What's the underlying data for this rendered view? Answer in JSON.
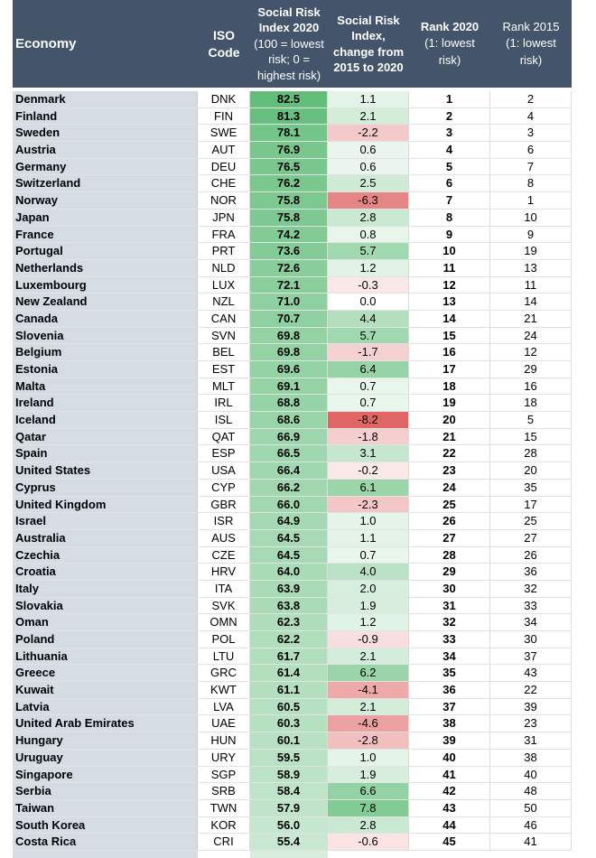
{
  "table": {
    "headers": {
      "economy": "Economy",
      "iso": [
        "ISO",
        "Code"
      ],
      "sri": [
        "Social Risk",
        "Index 2020",
        "(100 = lowest",
        "risk; 0 =",
        "highest risk)"
      ],
      "change": [
        "Social Risk",
        "Index,",
        "change from",
        "2015 to 2020"
      ],
      "rank2020": [
        "Rank 2020",
        "(1: lowest",
        "risk)"
      ],
      "rank2015": [
        "Rank 2015",
        "(1: lowest",
        "risk)"
      ]
    },
    "colors": {
      "header_bg": "#44546a",
      "economy_bg": "#d6dce4",
      "score_low": "#fcfdfc",
      "score_high": "#63be7b",
      "change_positive": "#63be7b",
      "change_negative": "#e06666"
    }
  },
  "chart_data": {
    "type": "table",
    "columns": [
      "Economy",
      "ISO Code",
      "Social Risk Index 2020 (100 = lowest risk; 0 = highest risk)",
      "Social Risk Index, change from 2015 to 2020",
      "Rank 2020 (1: lowest risk)",
      "Rank 2015 (1: lowest risk)"
    ],
    "rows": [
      [
        "Denmark",
        "DNK",
        "82.5",
        "1.1",
        "1",
        "2"
      ],
      [
        "Finland",
        "FIN",
        "81.3",
        "2.1",
        "2",
        "4"
      ],
      [
        "Sweden",
        "SWE",
        "78.1",
        "-2.2",
        "3",
        "3"
      ],
      [
        "Austria",
        "AUT",
        "76.9",
        "0.6",
        "4",
        "6"
      ],
      [
        "Germany",
        "DEU",
        "76.5",
        "0.6",
        "5",
        "7"
      ],
      [
        "Switzerland",
        "CHE",
        "76.2",
        "2.5",
        "6",
        "8"
      ],
      [
        "Norway",
        "NOR",
        "75.8",
        "-6.3",
        "7",
        "1"
      ],
      [
        "Japan",
        "JPN",
        "75.8",
        "2.8",
        "8",
        "10"
      ],
      [
        "France",
        "FRA",
        "74.2",
        "0.8",
        "9",
        "9"
      ],
      [
        "Portugal",
        "PRT",
        "73.6",
        "5.7",
        "10",
        "19"
      ],
      [
        "Netherlands",
        "NLD",
        "72.6",
        "1.2",
        "11",
        "13"
      ],
      [
        "Luxembourg",
        "LUX",
        "72.1",
        "-0.3",
        "12",
        "11"
      ],
      [
        "New Zealand",
        "NZL",
        "71.0",
        "0.0",
        "13",
        "14"
      ],
      [
        "Canada",
        "CAN",
        "70.7",
        "4.4",
        "14",
        "21"
      ],
      [
        "Slovenia",
        "SVN",
        "69.8",
        "5.7",
        "15",
        "24"
      ],
      [
        "Belgium",
        "BEL",
        "69.8",
        "-1.7",
        "16",
        "12"
      ],
      [
        "Estonia",
        "EST",
        "69.6",
        "6.4",
        "17",
        "29"
      ],
      [
        "Malta",
        "MLT",
        "69.1",
        "0.7",
        "18",
        "16"
      ],
      [
        "Ireland",
        "IRL",
        "68.8",
        "0.7",
        "19",
        "18"
      ],
      [
        "Iceland",
        "ISL",
        "68.6",
        "-8.2",
        "20",
        "5"
      ],
      [
        "Qatar",
        "QAT",
        "66.9",
        "-1.8",
        "21",
        "15"
      ],
      [
        "Spain",
        "ESP",
        "66.5",
        "3.1",
        "22",
        "28"
      ],
      [
        "United States",
        "USA",
        "66.4",
        "-0.2",
        "23",
        "20"
      ],
      [
        "Cyprus",
        "CYP",
        "66.2",
        "6.1",
        "24",
        "35"
      ],
      [
        "United Kingdom",
        "GBR",
        "66.0",
        "-2.3",
        "25",
        "17"
      ],
      [
        "Israel",
        "ISR",
        "64.9",
        "1.0",
        "26",
        "25"
      ],
      [
        "Australia",
        "AUS",
        "64.5",
        "1.1",
        "27",
        "27"
      ],
      [
        "Czechia",
        "CZE",
        "64.5",
        "0.7",
        "28",
        "26"
      ],
      [
        "Croatia",
        "HRV",
        "64.0",
        "4.0",
        "29",
        "36"
      ],
      [
        "Italy",
        "ITA",
        "63.9",
        "2.0",
        "30",
        "32"
      ],
      [
        "Slovakia",
        "SVK",
        "63.8",
        "1.9",
        "31",
        "33"
      ],
      [
        "Oman",
        "OMN",
        "62.3",
        "1.2",
        "32",
        "34"
      ],
      [
        "Poland",
        "POL",
        "62.2",
        "-0.9",
        "33",
        "30"
      ],
      [
        "Lithuania",
        "LTU",
        "61.7",
        "2.1",
        "34",
        "37"
      ],
      [
        "Greece",
        "GRC",
        "61.4",
        "6.2",
        "35",
        "43"
      ],
      [
        "Kuwait",
        "KWT",
        "61.1",
        "-4.1",
        "36",
        "22"
      ],
      [
        "Latvia",
        "LVA",
        "60.5",
        "2.1",
        "37",
        "39"
      ],
      [
        "United Arab Emirates",
        "UAE",
        "60.3",
        "-4.6",
        "38",
        "23"
      ],
      [
        "Hungary",
        "HUN",
        "60.1",
        "-2.8",
        "39",
        "31"
      ],
      [
        "Uruguay",
        "URY",
        "59.5",
        "1.0",
        "40",
        "38"
      ],
      [
        "Singapore",
        "SGP",
        "58.9",
        "1.9",
        "41",
        "40"
      ],
      [
        "Serbia",
        "SRB",
        "58.4",
        "6.6",
        "42",
        "48"
      ],
      [
        "Taiwan",
        "TWN",
        "57.9",
        "7.8",
        "43",
        "50"
      ],
      [
        "South Korea",
        "KOR",
        "56.0",
        "2.8",
        "44",
        "46"
      ],
      [
        "Costa Rica",
        "CRI",
        "55.4",
        "-0.6",
        "45",
        "41"
      ]
    ]
  }
}
